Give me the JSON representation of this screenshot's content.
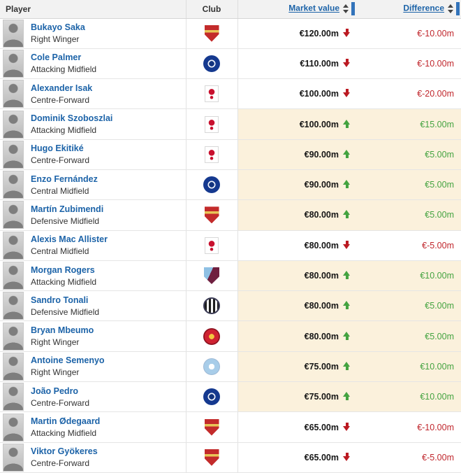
{
  "header": {
    "player": "Player",
    "club": "Club",
    "market_value": "Market value",
    "difference": "Difference"
  },
  "icons": {
    "sort": "sort-arrows-icon",
    "sort_active_indicator": "blue-sort-indicator-bar",
    "trend_up": "green-up-arrow-icon",
    "trend_down": "red-down-arrow-icon"
  },
  "colors": {
    "header_bg": "#f2f2f2",
    "link_blue": "#1c63a8",
    "positive_green": "#44a340",
    "negative_red": "#c0262c",
    "highlight_cell": "#fbf1dc"
  },
  "rows": [
    {
      "name": "Bukayo Saka",
      "position": "Right Winger",
      "club": "Arsenal FC",
      "club_icon": "arsenal-crest",
      "market_value": "€120.00m",
      "trend": "down",
      "difference": "€-10.00m",
      "highlighted": false
    },
    {
      "name": "Cole Palmer",
      "position": "Attacking Midfield",
      "club": "Chelsea FC",
      "club_icon": "chelsea-crest",
      "market_value": "€110.00m",
      "trend": "down",
      "difference": "€-10.00m",
      "highlighted": false
    },
    {
      "name": "Alexander Isak",
      "position": "Centre-Forward",
      "club": "Liverpool FC",
      "club_icon": "liverpool-crest",
      "market_value": "€100.00m",
      "trend": "down",
      "difference": "€-20.00m",
      "highlighted": false
    },
    {
      "name": "Dominik Szoboszlai",
      "position": "Attacking Midfield",
      "club": "Liverpool FC",
      "club_icon": "liverpool-crest",
      "market_value": "€100.00m",
      "trend": "up",
      "difference": "€15.00m",
      "highlighted": true
    },
    {
      "name": "Hugo Ekitiké",
      "position": "Centre-Forward",
      "club": "Liverpool FC",
      "club_icon": "liverpool-crest",
      "market_value": "€90.00m",
      "trend": "up",
      "difference": "€5.00m",
      "highlighted": true
    },
    {
      "name": "Enzo Fernández",
      "position": "Central Midfield",
      "club": "Chelsea FC",
      "club_icon": "chelsea-crest",
      "market_value": "€90.00m",
      "trend": "up",
      "difference": "€5.00m",
      "highlighted": true
    },
    {
      "name": "Martín Zubimendi",
      "position": "Defensive Midfield",
      "club": "Arsenal FC",
      "club_icon": "arsenal-crest",
      "market_value": "€80.00m",
      "trend": "up",
      "difference": "€5.00m",
      "highlighted": true
    },
    {
      "name": "Alexis Mac Allister",
      "position": "Central Midfield",
      "club": "Liverpool FC",
      "club_icon": "liverpool-crest",
      "market_value": "€80.00m",
      "trend": "down",
      "difference": "€-5.00m",
      "highlighted": false
    },
    {
      "name": "Morgan Rogers",
      "position": "Attacking Midfield",
      "club": "Aston Villa",
      "club_icon": "aston-villa-crest",
      "market_value": "€80.00m",
      "trend": "up",
      "difference": "€10.00m",
      "highlighted": true
    },
    {
      "name": "Sandro Tonali",
      "position": "Defensive Midfield",
      "club": "Newcastle United",
      "club_icon": "newcastle-crest",
      "market_value": "€80.00m",
      "trend": "up",
      "difference": "€5.00m",
      "highlighted": true
    },
    {
      "name": "Bryan Mbeumo",
      "position": "Right Winger",
      "club": "Manchester United",
      "club_icon": "man-united-crest",
      "market_value": "€80.00m",
      "trend": "up",
      "difference": "€5.00m",
      "highlighted": true
    },
    {
      "name": "Antoine Semenyo",
      "position": "Right Winger",
      "club": "Manchester City",
      "club_icon": "man-city-crest",
      "market_value": "€75.00m",
      "trend": "up",
      "difference": "€10.00m",
      "highlighted": true
    },
    {
      "name": "João Pedro",
      "position": "Centre-Forward",
      "club": "Chelsea FC",
      "club_icon": "chelsea-crest",
      "market_value": "€75.00m",
      "trend": "up",
      "difference": "€10.00m",
      "highlighted": true
    },
    {
      "name": "Martin Ødegaard",
      "position": "Attacking Midfield",
      "club": "Arsenal FC",
      "club_icon": "arsenal-crest",
      "market_value": "€65.00m",
      "trend": "down",
      "difference": "€-10.00m",
      "highlighted": false
    },
    {
      "name": "Viktor Gyökeres",
      "position": "Centre-Forward",
      "club": "Arsenal FC",
      "club_icon": "arsenal-crest",
      "market_value": "€65.00m",
      "trend": "down",
      "difference": "€-5.00m",
      "highlighted": false
    }
  ]
}
